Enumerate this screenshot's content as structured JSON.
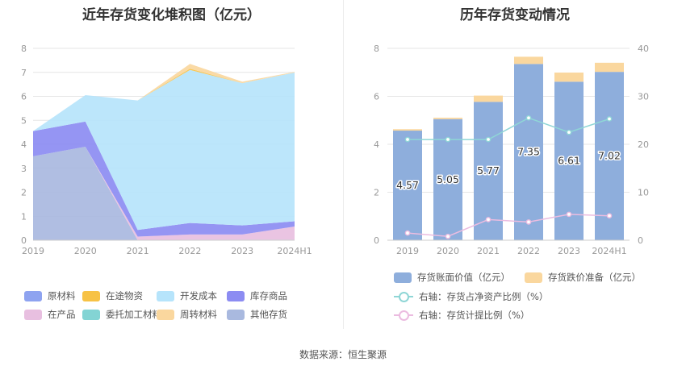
{
  "source": "数据来源：恒生聚源",
  "chart_data": [
    {
      "type": "area",
      "title": "近年存货变化堆积图（亿元）",
      "categories": [
        "2019",
        "2020",
        "2021",
        "2022",
        "2023",
        "2024H1"
      ],
      "ylim": [
        0,
        8
      ],
      "yticks": [
        "0",
        "1",
        "2",
        "3",
        "4",
        "5",
        "6",
        "7",
        "8"
      ],
      "grid": true,
      "legend_position": "bottom",
      "series": [
        {
          "name": "原材料",
          "color": "#8ea3f0",
          "values": [
            0,
            0,
            0,
            0.02,
            0.02,
            0.02
          ]
        },
        {
          "name": "在途物资",
          "color": "#f7c245",
          "values": [
            0,
            0,
            0,
            0.05,
            0,
            0
          ]
        },
        {
          "name": "开发成本",
          "color": "#b6e4fb",
          "values": [
            0,
            1.1,
            5.4,
            6.38,
            5.93,
            6.2
          ]
        },
        {
          "name": "库存商品",
          "color": "#8c8cf2",
          "values": [
            1.05,
            1.05,
            0.28,
            0.48,
            0.38,
            0.22
          ]
        },
        {
          "name": "在产品",
          "color": "#e8bfe0",
          "values": [
            0,
            0,
            0.15,
            0.22,
            0.22,
            0.55
          ]
        },
        {
          "name": "委托加工材料",
          "color": "#83d4d4",
          "values": [
            0,
            0,
            0,
            0,
            0,
            0
          ]
        },
        {
          "name": "周转材料",
          "color": "#fad79e",
          "values": [
            0,
            0,
            0,
            0.2,
            0.06,
            0.03
          ]
        },
        {
          "name": "其他存货",
          "color": "#a9b9df",
          "values": [
            3.5,
            3.9,
            0,
            0,
            0,
            0
          ]
        }
      ]
    },
    {
      "type": "bar",
      "title": "历年存货变动情况",
      "categories": [
        "2019",
        "2020",
        "2021",
        "2022",
        "2023",
        "2024H1"
      ],
      "ylim": [
        0,
        8
      ],
      "yticks": [
        "0",
        "2",
        "4",
        "6",
        "8"
      ],
      "y2lim": [
        0,
        40
      ],
      "y2ticks": [
        "0",
        "10",
        "20",
        "30",
        "40"
      ],
      "grid": true,
      "legend_position": "bottom",
      "series": [
        {
          "name": "存货账面价值（亿元）",
          "color": "#8eaedc",
          "stack": "a",
          "values": [
            4.57,
            5.05,
            5.77,
            7.35,
            6.61,
            7.02
          ],
          "labels": [
            "4.57",
            "5.05",
            "5.77",
            "7.35",
            "6.61",
            "7.02"
          ]
        },
        {
          "name": "存货跌价准备（亿元）",
          "color": "#fad79e",
          "stack": "a",
          "values": [
            0.06,
            0.06,
            0.26,
            0.3,
            0.38,
            0.38
          ]
        },
        {
          "name": "右轴：存货占净资产比例（%）",
          "type": "line",
          "axis": "right",
          "color": "#8fd6d6",
          "values": [
            21,
            21,
            21,
            25.5,
            22.5,
            25.3
          ]
        },
        {
          "name": "右轴：存货计提比例（%）",
          "type": "line",
          "axis": "right",
          "color": "#ebbce0",
          "values": [
            1.5,
            0.8,
            4.3,
            3.8,
            5.4,
            5.1
          ]
        }
      ]
    }
  ]
}
